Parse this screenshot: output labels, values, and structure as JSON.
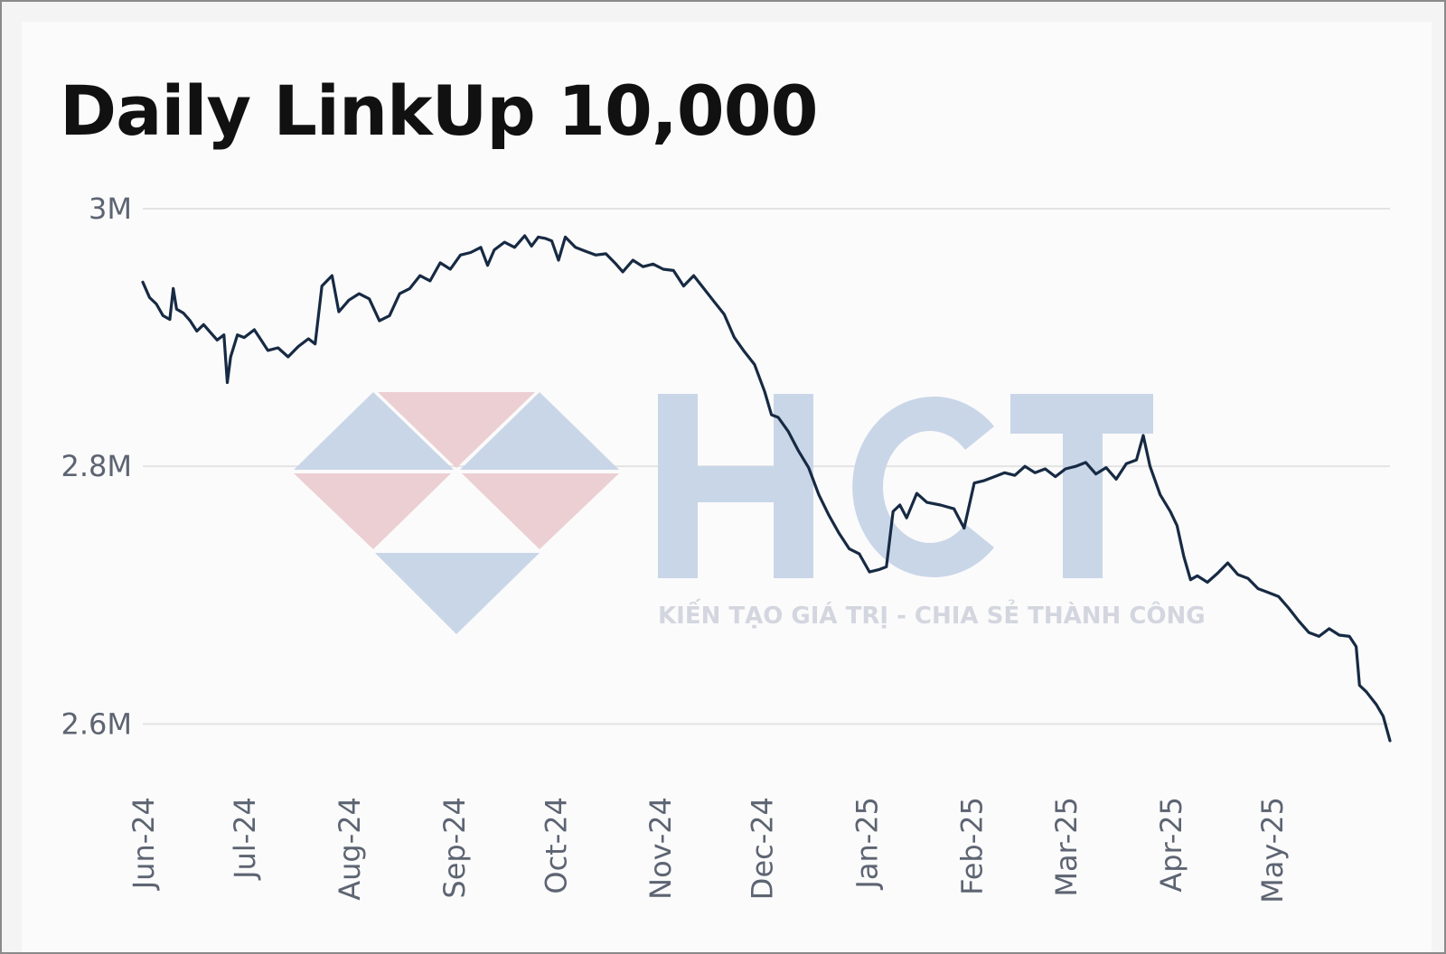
{
  "chart_data": {
    "type": "line",
    "title": "Daily LinkUp 10,000",
    "xlabel": "",
    "ylabel": "",
    "x_ticks": [
      "Jun-24",
      "Jul-24",
      "Aug-24",
      "Sep-24",
      "Oct-24",
      "Nov-24",
      "Dec-24",
      "Jan-25",
      "Feb-25",
      "Mar-25",
      "Apr-25",
      "May-25"
    ],
    "y_ticks": [
      {
        "value": 3000000,
        "label": "3M"
      },
      {
        "value": 2800000,
        "label": "2.8M"
      },
      {
        "value": 2600000,
        "label": "2.6M"
      }
    ],
    "ylim": [
      2568000,
      3000000
    ],
    "grid": "horizontal",
    "line_color": "#172a43",
    "series": [
      {
        "points": [
          [
            "2024-06-01",
            2943000
          ],
          [
            "2024-06-03",
            2931000
          ],
          [
            "2024-06-05",
            2926000
          ],
          [
            "2024-06-07",
            2917000
          ],
          [
            "2024-06-09",
            2914000
          ],
          [
            "2024-06-10",
            2938000
          ],
          [
            "2024-06-11",
            2922000
          ],
          [
            "2024-06-13",
            2919000
          ],
          [
            "2024-06-15",
            2913000
          ],
          [
            "2024-06-17",
            2905000
          ],
          [
            "2024-06-19",
            2910000
          ],
          [
            "2024-06-21",
            2904000
          ],
          [
            "2024-06-23",
            2898000
          ],
          [
            "2024-06-25",
            2902000
          ],
          [
            "2024-06-26",
            2865000
          ],
          [
            "2024-06-27",
            2885000
          ],
          [
            "2024-06-29",
            2902000
          ],
          [
            "2024-07-01",
            2900000
          ],
          [
            "2024-07-04",
            2906000
          ],
          [
            "2024-07-06",
            2898000
          ],
          [
            "2024-07-08",
            2890000
          ],
          [
            "2024-07-11",
            2892000
          ],
          [
            "2024-07-14",
            2885000
          ],
          [
            "2024-07-17",
            2893000
          ],
          [
            "2024-07-20",
            2899000
          ],
          [
            "2024-07-22",
            2895000
          ],
          [
            "2024-07-24",
            2940000
          ],
          [
            "2024-07-27",
            2948000
          ],
          [
            "2024-07-29",
            2920000
          ],
          [
            "2024-08-01",
            2929000
          ],
          [
            "2024-08-04",
            2934000
          ],
          [
            "2024-08-07",
            2930000
          ],
          [
            "2024-08-10",
            2913000
          ],
          [
            "2024-08-13",
            2917000
          ],
          [
            "2024-08-16",
            2934000
          ],
          [
            "2024-08-19",
            2938000
          ],
          [
            "2024-08-22",
            2948000
          ],
          [
            "2024-08-25",
            2944000
          ],
          [
            "2024-08-28",
            2958000
          ],
          [
            "2024-08-31",
            2953000
          ],
          [
            "2024-09-03",
            2964000
          ],
          [
            "2024-09-06",
            2966000
          ],
          [
            "2024-09-09",
            2970000
          ],
          [
            "2024-09-11",
            2956000
          ],
          [
            "2024-09-13",
            2968000
          ],
          [
            "2024-09-16",
            2974000
          ],
          [
            "2024-09-19",
            2970000
          ],
          [
            "2024-09-22",
            2979000
          ],
          [
            "2024-09-24",
            2971000
          ],
          [
            "2024-09-26",
            2978000
          ],
          [
            "2024-09-28",
            2977000
          ],
          [
            "2024-09-30",
            2975000
          ],
          [
            "2024-10-02",
            2960000
          ],
          [
            "2024-10-04",
            2978000
          ],
          [
            "2024-10-07",
            2970000
          ],
          [
            "2024-10-10",
            2967000
          ],
          [
            "2024-10-13",
            2964000
          ],
          [
            "2024-10-16",
            2965000
          ],
          [
            "2024-10-19",
            2957000
          ],
          [
            "2024-10-21",
            2951000
          ],
          [
            "2024-10-24",
            2960000
          ],
          [
            "2024-10-27",
            2955000
          ],
          [
            "2024-10-30",
            2957000
          ],
          [
            "2024-11-02",
            2953000
          ],
          [
            "2024-11-05",
            2952000
          ],
          [
            "2024-11-08",
            2940000
          ],
          [
            "2024-11-11",
            2948000
          ],
          [
            "2024-11-14",
            2938000
          ],
          [
            "2024-11-17",
            2928000
          ],
          [
            "2024-11-20",
            2918000
          ],
          [
            "2024-11-23",
            2900000
          ],
          [
            "2024-11-26",
            2889000
          ],
          [
            "2024-11-29",
            2879000
          ],
          [
            "2024-12-02",
            2858000
          ],
          [
            "2024-12-04",
            2840000
          ],
          [
            "2024-12-06",
            2838000
          ],
          [
            "2024-12-09",
            2827000
          ],
          [
            "2024-12-12",
            2812000
          ],
          [
            "2024-12-15",
            2799000
          ],
          [
            "2024-12-18",
            2778000
          ],
          [
            "2024-12-21",
            2762000
          ],
          [
            "2024-12-24",
            2748000
          ],
          [
            "2024-12-27",
            2736000
          ],
          [
            "2024-12-30",
            2732000
          ],
          [
            "2025-01-02",
            2718000
          ],
          [
            "2025-01-05",
            2720000
          ],
          [
            "2025-01-07",
            2722000
          ],
          [
            "2025-01-09",
            2765000
          ],
          [
            "2025-01-11",
            2770000
          ],
          [
            "2025-01-13",
            2760000
          ],
          [
            "2025-01-16",
            2779000
          ],
          [
            "2025-01-19",
            2772000
          ],
          [
            "2025-01-23",
            2770000
          ],
          [
            "2025-01-27",
            2767000
          ],
          [
            "2025-01-30",
            2752000
          ],
          [
            "2025-02-02",
            2787000
          ],
          [
            "2025-02-05",
            2789000
          ],
          [
            "2025-02-08",
            2792000
          ],
          [
            "2025-02-11",
            2795000
          ],
          [
            "2025-02-14",
            2793000
          ],
          [
            "2025-02-17",
            2800000
          ],
          [
            "2025-02-20",
            2795000
          ],
          [
            "2025-02-23",
            2798000
          ],
          [
            "2025-02-26",
            2792000
          ],
          [
            "2025-03-01",
            2798000
          ],
          [
            "2025-03-04",
            2800000
          ],
          [
            "2025-03-07",
            2803000
          ],
          [
            "2025-03-10",
            2794000
          ],
          [
            "2025-03-13",
            2799000
          ],
          [
            "2025-03-16",
            2790000
          ],
          [
            "2025-03-19",
            2802000
          ],
          [
            "2025-03-22",
            2805000
          ],
          [
            "2025-03-24",
            2824000
          ],
          [
            "2025-03-26",
            2800000
          ],
          [
            "2025-03-29",
            2778000
          ],
          [
            "2025-04-01",
            2765000
          ],
          [
            "2025-04-03",
            2754000
          ],
          [
            "2025-04-05",
            2730000
          ],
          [
            "2025-04-07",
            2712000
          ],
          [
            "2025-04-09",
            2715000
          ],
          [
            "2025-04-12",
            2710000
          ],
          [
            "2025-04-15",
            2717000
          ],
          [
            "2025-04-18",
            2725000
          ],
          [
            "2025-04-21",
            2716000
          ],
          [
            "2025-04-24",
            2713000
          ],
          [
            "2025-04-27",
            2705000
          ],
          [
            "2025-04-30",
            2702000
          ],
          [
            "2025-05-03",
            2699000
          ],
          [
            "2025-05-06",
            2690000
          ],
          [
            "2025-05-09",
            2680000
          ],
          [
            "2025-05-12",
            2671000
          ],
          [
            "2025-05-15",
            2668000
          ],
          [
            "2025-05-18",
            2674000
          ],
          [
            "2025-05-21",
            2669000
          ],
          [
            "2025-05-24",
            2668000
          ],
          [
            "2025-05-26",
            2660000
          ],
          [
            "2025-05-27",
            2630000
          ],
          [
            "2025-05-29",
            2625000
          ],
          [
            "2025-06-01",
            2615000
          ],
          [
            "2025-06-03",
            2606000
          ],
          [
            "2025-06-05",
            2587000
          ]
        ]
      }
    ],
    "watermark": {
      "logo_text": "HCT",
      "tagline": "KIẾN TẠO GIÁ TRỊ - CHIA SẺ THÀNH CÔNG",
      "colors": {
        "blue": "#c6d3e6",
        "red": "#edcdd1"
      }
    }
  }
}
